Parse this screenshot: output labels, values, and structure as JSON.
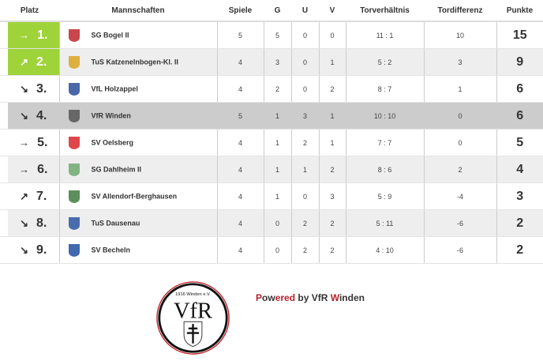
{
  "headers": {
    "platz": "Platz",
    "team": "Mannschaften",
    "spiele": "Spiele",
    "g": "G",
    "u": "U",
    "v": "V",
    "tore": "Torverhältnis",
    "diff": "Tordifferenz",
    "punkte": "Punkte"
  },
  "rows": [
    {
      "trend": "→",
      "trend_icon": "arrow-right-icon",
      "rank": "1.",
      "team": "SG Bogel II",
      "spiele": "5",
      "g": "5",
      "u": "0",
      "v": "0",
      "tore": "11 : 1",
      "diff": "10",
      "punkte": "15"
    },
    {
      "trend": "↗",
      "trend_icon": "arrow-up-right-icon",
      "rank": "2.",
      "team": "TuS Katzenelnbogen-Kl. II",
      "spiele": "4",
      "g": "3",
      "u": "0",
      "v": "1",
      "tore": "5 : 2",
      "diff": "3",
      "punkte": "9"
    },
    {
      "trend": "↘",
      "trend_icon": "arrow-down-right-icon",
      "rank": "3.",
      "team": "VfL Holzappel",
      "spiele": "4",
      "g": "2",
      "u": "0",
      "v": "2",
      "tore": "8 : 7",
      "diff": "1",
      "punkte": "6"
    },
    {
      "trend": "↘",
      "trend_icon": "arrow-down-right-icon",
      "rank": "4.",
      "team": "VfR Winden",
      "spiele": "5",
      "g": "1",
      "u": "3",
      "v": "1",
      "tore": "10 : 10",
      "diff": "0",
      "punkte": "6"
    },
    {
      "trend": "→",
      "trend_icon": "arrow-right-icon",
      "rank": "5.",
      "team": "SV Oelsberg",
      "spiele": "4",
      "g": "1",
      "u": "2",
      "v": "1",
      "tore": "7 : 7",
      "diff": "0",
      "punkte": "5"
    },
    {
      "trend": "→",
      "trend_icon": "arrow-right-icon",
      "rank": "6.",
      "team": "SG Dahlheim II",
      "spiele": "4",
      "g": "1",
      "u": "1",
      "v": "2",
      "tore": "8 : 6",
      "diff": "2",
      "punkte": "4"
    },
    {
      "trend": "↗",
      "trend_icon": "arrow-up-right-icon",
      "rank": "7.",
      "team": "SV Allendorf-Berghausen",
      "spiele": "4",
      "g": "1",
      "u": "0",
      "v": "3",
      "tore": "5 : 9",
      "diff": "-4",
      "punkte": "3"
    },
    {
      "trend": "↘",
      "trend_icon": "arrow-down-right-icon",
      "rank": "8.",
      "team": "TuS Dausenau",
      "spiele": "4",
      "g": "0",
      "u": "2",
      "v": "2",
      "tore": "5 : 11",
      "diff": "-6",
      "punkte": "2"
    },
    {
      "trend": "↘",
      "trend_icon": "arrow-down-right-icon",
      "rank": "9.",
      "team": "SV Becheln",
      "spiele": "4",
      "g": "0",
      "u": "2",
      "v": "2",
      "tore": "4 : 10",
      "diff": "-6",
      "punkte": "2"
    }
  ],
  "logo_colors": [
    "#c0262d",
    "#d9a51e",
    "#2a4c9a",
    "#555555",
    "#d9262a",
    "#6fa86f",
    "#3f7a3f",
    "#2b55a0",
    "#1f4fa0"
  ],
  "footer": {
    "logo_text": "1916 Winden e.V.",
    "logo_mark": "VfR",
    "powered": [
      "P",
      "ow",
      "ered",
      " by VfR ",
      "W",
      "inden"
    ]
  },
  "colors": {
    "promotion": "#9fd33a",
    "own_team": "#cccccc",
    "alt_row": "#eeeeee",
    "brand_red": "#b8202a"
  }
}
